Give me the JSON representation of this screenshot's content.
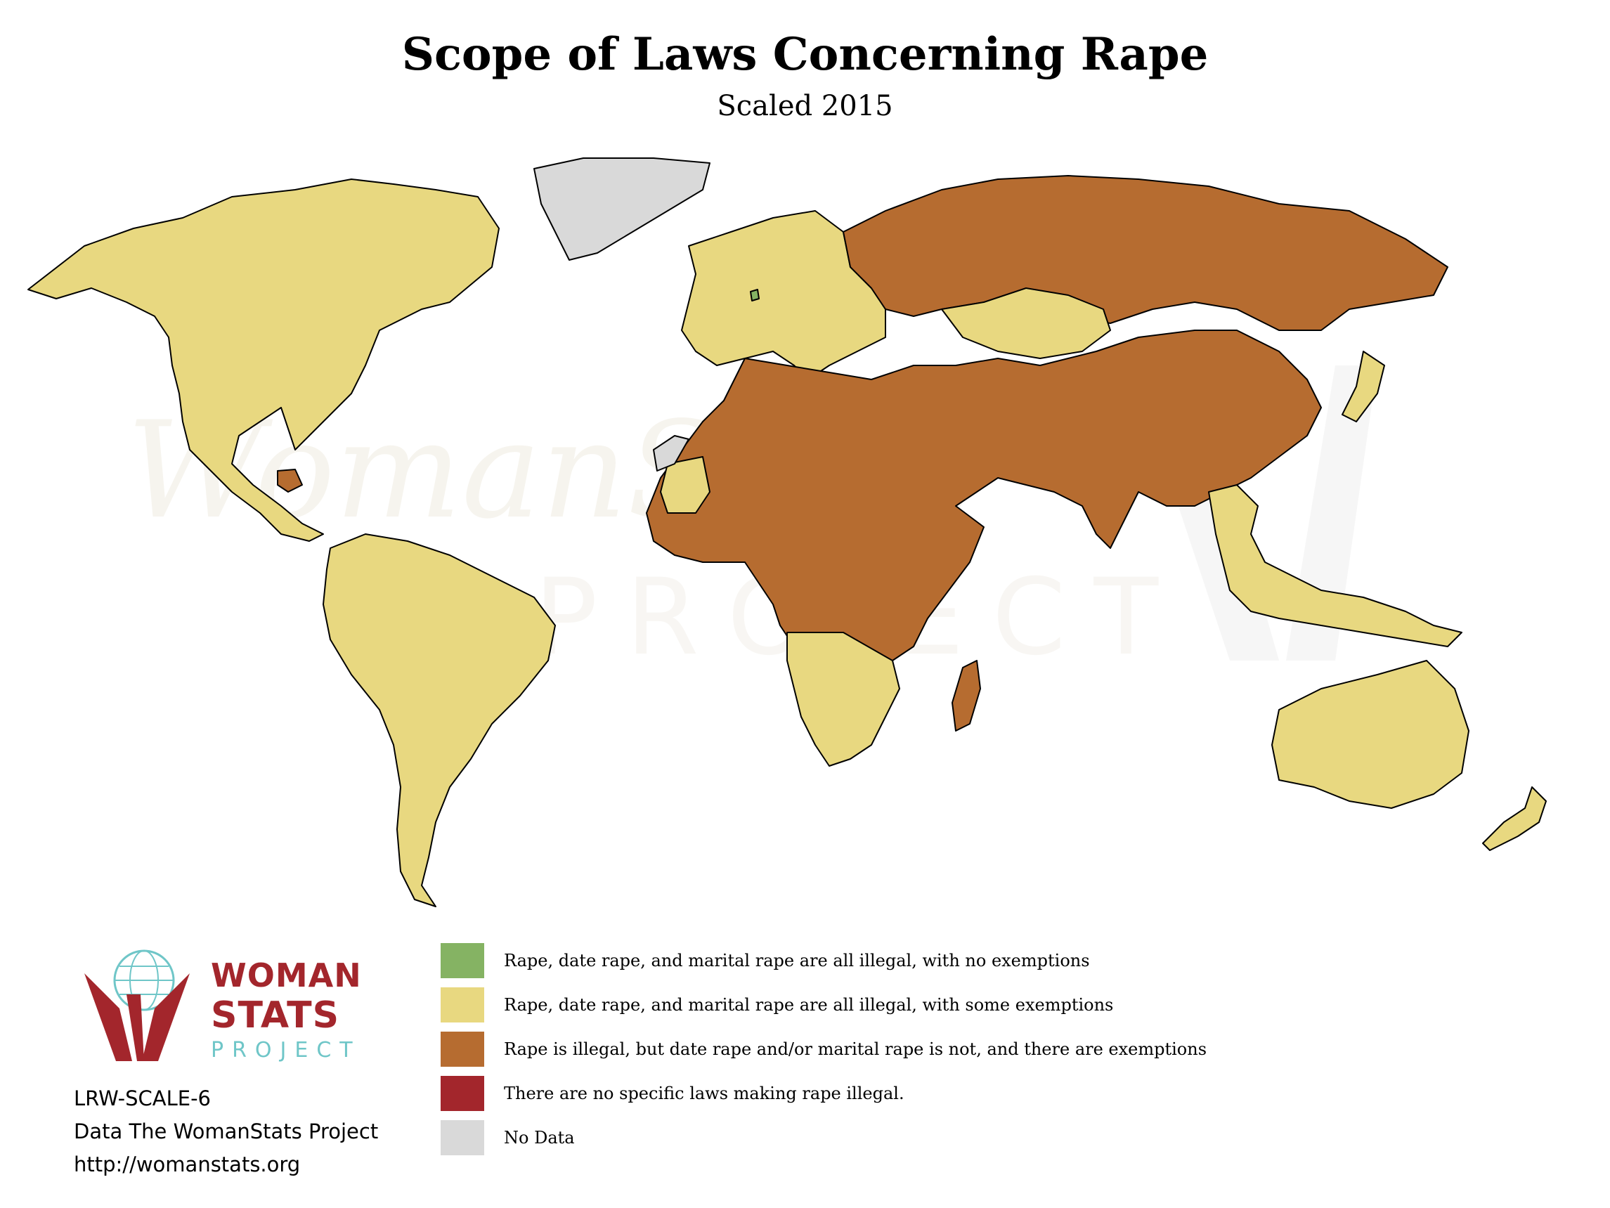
{
  "title": "Scope of Laws Concerning Rape",
  "subtitle": "Scaled 2015",
  "watermark": {
    "line1": "WomanStats",
    "line2": "PROJECT"
  },
  "colors": {
    "no_exemptions": "#85b363",
    "some_exemptions": "#e8d880",
    "not_illegal_date_marital": "#b66c30",
    "no_laws": "#a3262c",
    "no_data": "#d9d9d9",
    "border": "#000000"
  },
  "legend": [
    {
      "label": "Rape, date rape, and marital rape are all illegal, with no exemptions",
      "color": "#85b363"
    },
    {
      "label": "Rape, date rape, and marital rape are all illegal, with some exemptions",
      "color": "#e8d880"
    },
    {
      "label": "Rape is illegal, but date rape and/or marital rape is not, and there are exemptions",
      "color": "#b66c30"
    },
    {
      "label": "There are no specific laws making rape illegal.",
      "color": "#a3262c"
    },
    {
      "label": "No Data",
      "color": "#d9d9d9"
    }
  ],
  "logo": {
    "word1": "WOMAN",
    "word2": "STATS",
    "word3": "PROJECT"
  },
  "credits": {
    "code": "LRW-SCALE-6",
    "source": "Data The WomanStats Project",
    "url": "http://womanstats.org"
  },
  "regions": [
    {
      "name": "north-america",
      "category": "some_exemptions"
    },
    {
      "name": "greenland",
      "category": "no_data"
    },
    {
      "name": "south-america",
      "category": "some_exemptions"
    },
    {
      "name": "europe",
      "category": "some_exemptions"
    },
    {
      "name": "russia-eastern-europe",
      "category": "not_illegal_date_marital"
    },
    {
      "name": "kazakhstan",
      "category": "some_exemptions"
    },
    {
      "name": "asia-middle-east-africa",
      "category": "not_illegal_date_marital"
    },
    {
      "name": "southern-africa",
      "category": "some_exemptions"
    },
    {
      "name": "madagascar",
      "category": "not_illegal_date_marital"
    },
    {
      "name": "southeast-asia-islands",
      "category": "some_exemptions"
    },
    {
      "name": "japan",
      "category": "some_exemptions"
    },
    {
      "name": "australia",
      "category": "some_exemptions"
    },
    {
      "name": "new-zealand",
      "category": "some_exemptions"
    },
    {
      "name": "western-sahara",
      "category": "no_data"
    },
    {
      "name": "mauritania",
      "category": "some_exemptions"
    },
    {
      "name": "central-america-guatemala",
      "category": "not_illegal_date_marital"
    },
    {
      "name": "netherlands",
      "category": "no_exemptions"
    }
  ]
}
